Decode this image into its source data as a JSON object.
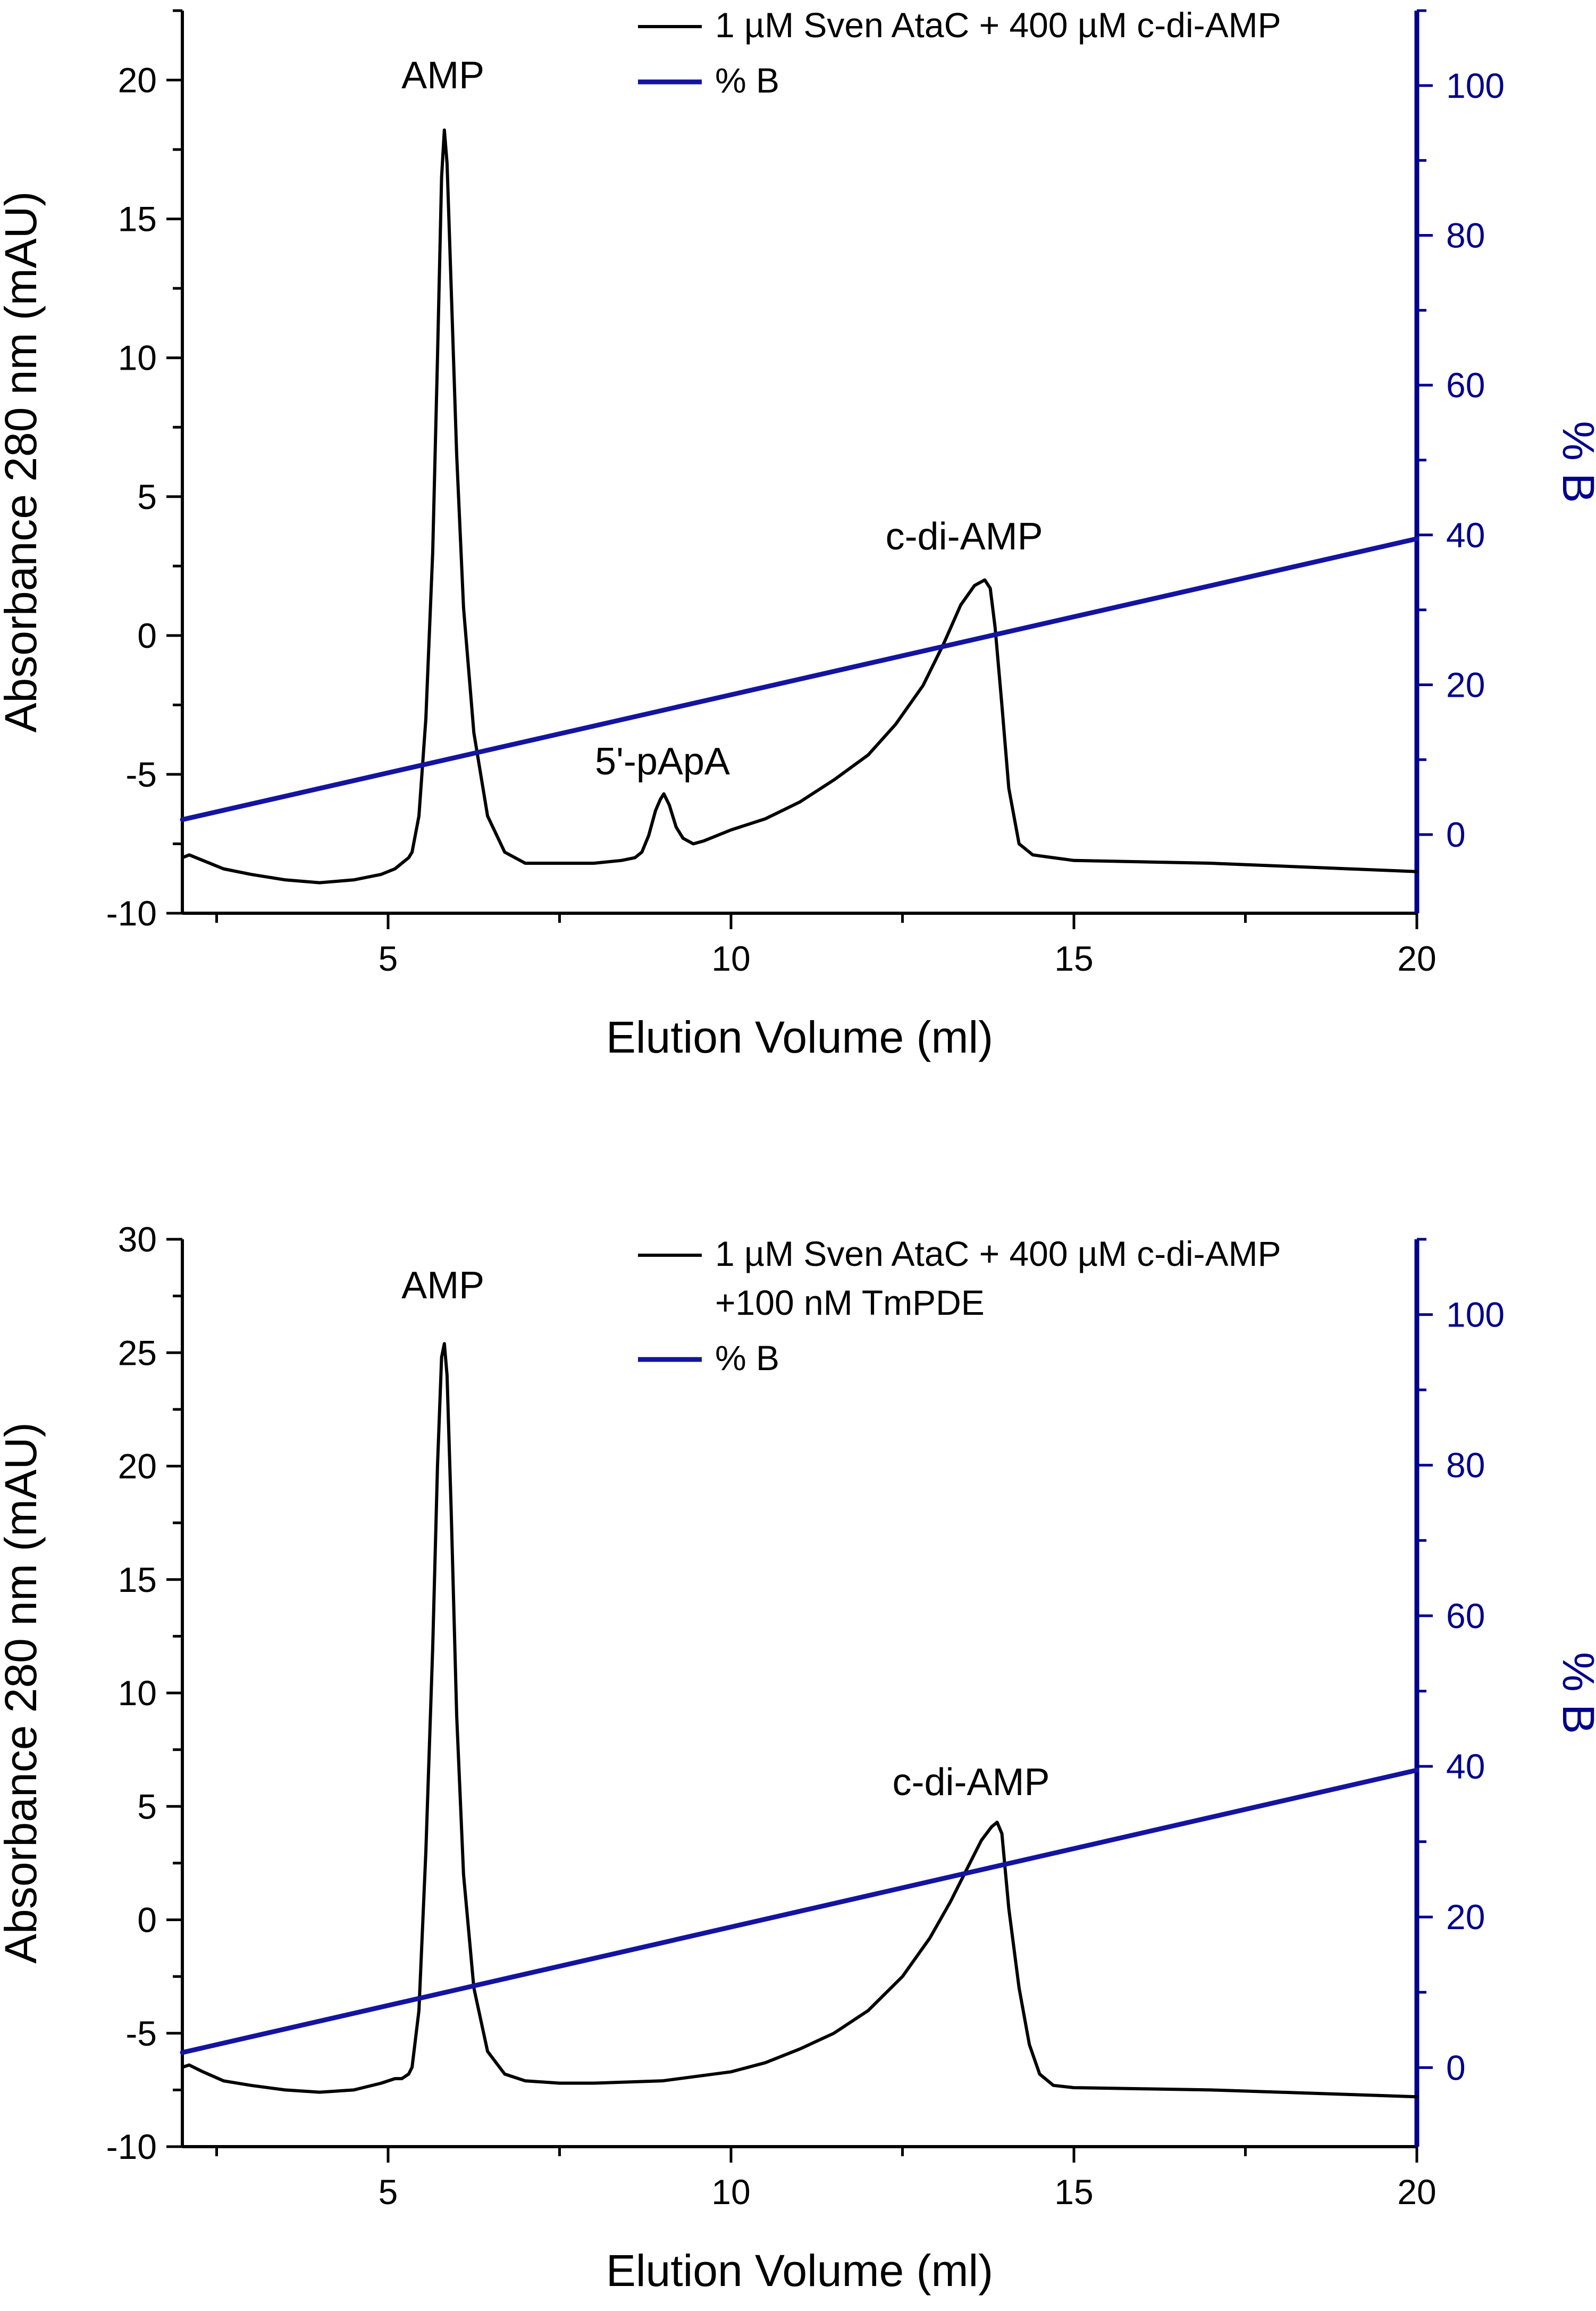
{
  "chart_data": [
    {
      "type": "line",
      "xlabel": "Elution Volume (ml)",
      "ylabel": "Absorbance 280 nm (mAU)",
      "y2label": "% B",
      "xlim": [
        2,
        20
      ],
      "ylim": [
        -10,
        22.5
      ],
      "y2lim": [
        -10.5,
        110
      ],
      "x_ticks": [
        5,
        10,
        15,
        20
      ],
      "y_ticks": [
        -10,
        -5,
        0,
        5,
        10,
        15,
        20
      ],
      "y2_ticks": [
        0,
        20,
        40,
        60,
        80,
        100
      ],
      "legend_position": "top-right",
      "colors": {
        "absorbance": "#000000",
        "percent_b": "#1414a0",
        "right_axis": "#00008b"
      },
      "annotations": [
        {
          "text": "AMP",
          "x": 5.8,
          "y": 19.7
        },
        {
          "text": "5'-pApA",
          "x": 9.0,
          "y": -5.0
        },
        {
          "text": "c-di-AMP",
          "x": 13.4,
          "y": 3.1
        }
      ],
      "series": [
        {
          "name": "1 µM Sven AtaC + 400 µM c-di-AMP",
          "axis": "left",
          "x": [
            2.0,
            2.1,
            2.3,
            2.6,
            3.0,
            3.5,
            4.0,
            4.5,
            4.9,
            5.1,
            5.2,
            5.3,
            5.35,
            5.45,
            5.55,
            5.65,
            5.72,
            5.78,
            5.82,
            5.86,
            5.92,
            6.0,
            6.1,
            6.25,
            6.45,
            6.7,
            7.0,
            7.5,
            8.0,
            8.4,
            8.6,
            8.7,
            8.8,
            8.9,
            8.97,
            9.02,
            9.1,
            9.2,
            9.3,
            9.45,
            9.6,
            10.0,
            10.5,
            11.0,
            11.5,
            12.0,
            12.4,
            12.8,
            13.1,
            13.35,
            13.55,
            13.7,
            13.78,
            13.85,
            13.95,
            14.05,
            14.2,
            14.4,
            14.7,
            15.0,
            16.0,
            17.0,
            18.0,
            19.0,
            20.0
          ],
          "y": [
            -8.0,
            -7.9,
            -8.1,
            -8.4,
            -8.6,
            -8.8,
            -8.9,
            -8.8,
            -8.6,
            -8.4,
            -8.2,
            -8.0,
            -7.8,
            -6.5,
            -3.0,
            3.0,
            10.0,
            16.5,
            18.2,
            17.0,
            12.5,
            6.5,
            1.0,
            -3.5,
            -6.5,
            -7.8,
            -8.2,
            -8.2,
            -8.2,
            -8.1,
            -8.0,
            -7.8,
            -7.2,
            -6.3,
            -5.9,
            -5.7,
            -6.1,
            -6.9,
            -7.3,
            -7.5,
            -7.4,
            -7.0,
            -6.6,
            -6.0,
            -5.2,
            -4.3,
            -3.2,
            -1.8,
            -0.3,
            1.1,
            1.8,
            2.0,
            1.7,
            0.3,
            -2.5,
            -5.5,
            -7.5,
            -7.9,
            -8.0,
            -8.1,
            -8.15,
            -8.2,
            -8.3,
            -8.4,
            -8.5
          ]
        },
        {
          "name": "% B",
          "axis": "right",
          "x": [
            2.0,
            20.0
          ],
          "y": [
            2.0,
            39.5
          ]
        }
      ]
    },
    {
      "type": "line",
      "xlabel": "Elution Volume (ml)",
      "ylabel": "Absorbance 280 nm (mAU)",
      "y2label": "% B",
      "xlim": [
        2,
        20
      ],
      "ylim": [
        -10,
        30
      ],
      "y2lim": [
        -10.5,
        110
      ],
      "x_ticks": [
        5,
        10,
        15,
        20
      ],
      "y_ticks": [
        -10,
        -5,
        0,
        5,
        10,
        15,
        20,
        25,
        30
      ],
      "y2_ticks": [
        0,
        20,
        40,
        60,
        80,
        100
      ],
      "legend_position": "top-right",
      "colors": {
        "absorbance": "#000000",
        "percent_b": "#1414a0",
        "right_axis": "#00008b"
      },
      "annotations": [
        {
          "text": "AMP",
          "x": 5.8,
          "y": 27.4
        },
        {
          "text": "c-di-AMP",
          "x": 13.5,
          "y": 5.5
        }
      ],
      "series": [
        {
          "name": "1 µM Sven AtaC + 400 µM c-di-AMP\n+100 nM TmPDE",
          "axis": "left",
          "x": [
            2.0,
            2.1,
            2.3,
            2.6,
            3.0,
            3.5,
            4.0,
            4.5,
            4.9,
            5.1,
            5.2,
            5.3,
            5.35,
            5.45,
            5.55,
            5.65,
            5.72,
            5.78,
            5.82,
            5.86,
            5.92,
            6.0,
            6.1,
            6.25,
            6.45,
            6.7,
            7.0,
            7.5,
            8.0,
            9.0,
            10.0,
            10.5,
            11.0,
            11.5,
            12.0,
            12.5,
            12.9,
            13.2,
            13.45,
            13.65,
            13.8,
            13.88,
            13.95,
            14.05,
            14.2,
            14.35,
            14.5,
            14.7,
            15.0,
            16.0,
            17.0,
            18.0,
            19.0,
            20.0
          ],
          "y": [
            -6.5,
            -6.4,
            -6.7,
            -7.1,
            -7.3,
            -7.5,
            -7.6,
            -7.5,
            -7.2,
            -7.0,
            -7.0,
            -6.8,
            -6.5,
            -4.0,
            3.0,
            12.0,
            20.0,
            24.8,
            25.4,
            24.0,
            18.0,
            9.0,
            2.0,
            -3.0,
            -5.8,
            -6.8,
            -7.1,
            -7.2,
            -7.2,
            -7.1,
            -6.7,
            -6.3,
            -5.7,
            -5.0,
            -4.0,
            -2.5,
            -0.8,
            0.8,
            2.3,
            3.5,
            4.1,
            4.3,
            3.8,
            0.5,
            -3.0,
            -5.5,
            -6.8,
            -7.3,
            -7.4,
            -7.45,
            -7.5,
            -7.6,
            -7.7,
            -7.8
          ]
        },
        {
          "name": "% B",
          "axis": "right",
          "x": [
            2.0,
            20.0
          ],
          "y": [
            2.0,
            39.5
          ]
        }
      ]
    }
  ]
}
